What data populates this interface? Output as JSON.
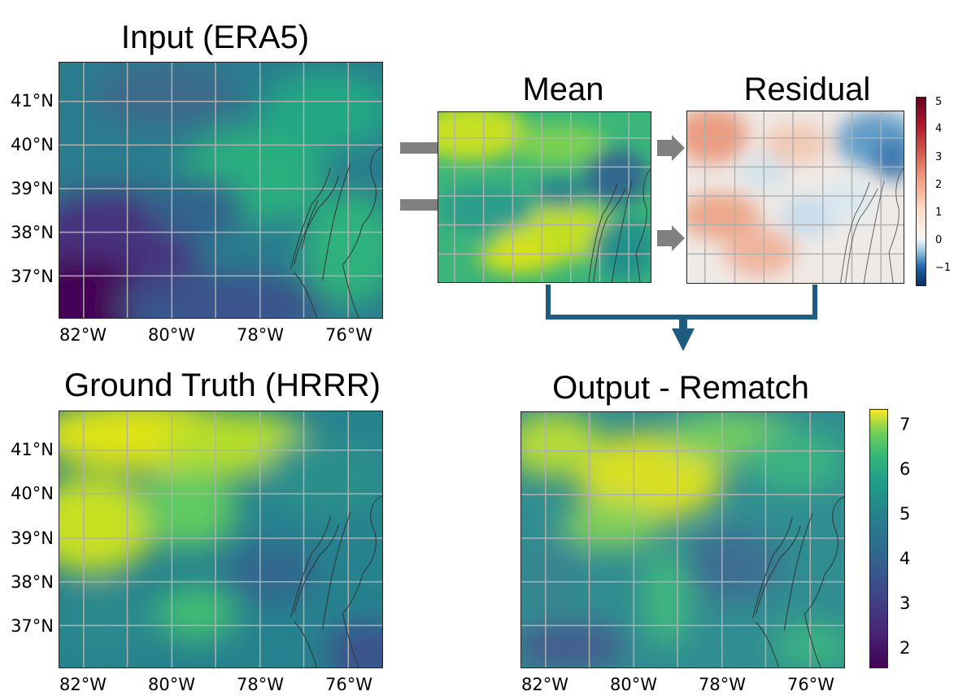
{
  "panels": {
    "input": {
      "title": "Input (ERA5)"
    },
    "mean": {
      "title": "Mean"
    },
    "residual": {
      "title": "Residual"
    },
    "ground_truth": {
      "title": "Ground Truth (HRRR)"
    },
    "output": {
      "title": "Output - Rematch"
    }
  },
  "axes": {
    "lat_ticks": [
      "41°N",
      "40°N",
      "39°N",
      "38°N",
      "37°N"
    ],
    "lon_ticks": [
      "82°W",
      "80°W",
      "78°W",
      "76°W"
    ]
  },
  "colorbars": {
    "residual": {
      "colormap": "RdBu_r",
      "ticks": [
        "5",
        "4",
        "3",
        "2",
        "1",
        "0",
        "−1"
      ]
    },
    "output": {
      "colormap": "viridis",
      "ticks": [
        "7",
        "6",
        "5",
        "4",
        "3",
        "2"
      ]
    }
  },
  "colors": {
    "arrow_gray": "#808080",
    "arrow_blue": "#1f5d80",
    "grid": "#b0b0b0",
    "coast": "#333333"
  }
}
